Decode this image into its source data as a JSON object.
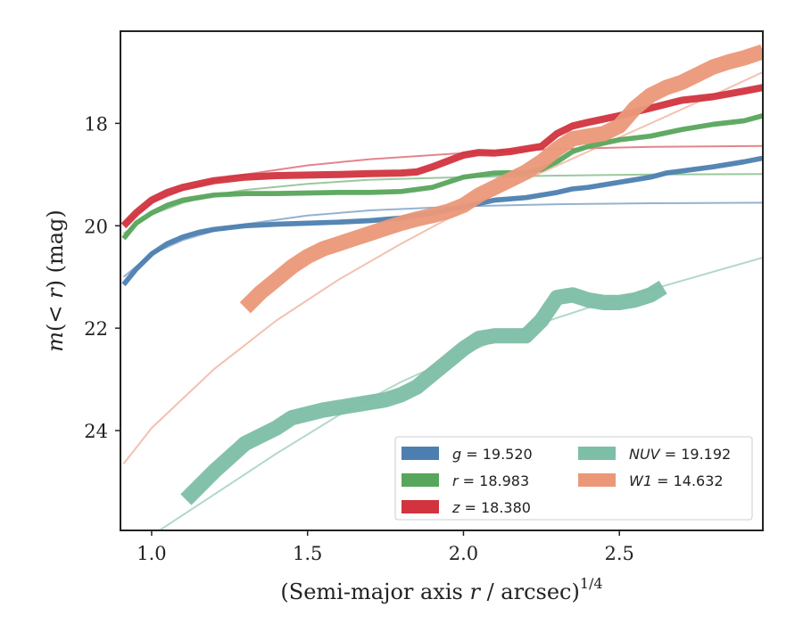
{
  "chart_data": {
    "type": "line",
    "xlabel": "(Semi-major axis r / arcsec)",
    "xlabel_parts": {
      "pre": "(Semi-major axis ",
      "var": "r",
      "post": " / arcsec)",
      "exp": "1/4"
    },
    "ylabel_parts": {
      "pre": "m",
      "mid": "(< ",
      "var": "r",
      "post": ") (mag)"
    },
    "xlim": [
      0.9,
      2.96
    ],
    "ylim": [
      25.95,
      16.2
    ],
    "y_inverted": true,
    "x_ticks": [
      "1.0",
      "1.5",
      "2.0",
      "2.5"
    ],
    "x_tick_values": [
      1.0,
      1.5,
      2.0,
      2.5
    ],
    "y_ticks": [
      "18",
      "20",
      "22",
      "24"
    ],
    "y_tick_values": [
      18,
      20,
      22,
      24
    ],
    "grid": false,
    "legend_position": "lower-right",
    "series": [
      {
        "name": "g",
        "label_value": "19.520",
        "color": "#4c7fb0",
        "band_width_mag": 0.1,
        "x": [
          0.91,
          0.95,
          1.0,
          1.05,
          1.1,
          1.15,
          1.2,
          1.3,
          1.4,
          1.5,
          1.6,
          1.7,
          1.8,
          1.9,
          2.0,
          2.1,
          2.2,
          2.3,
          2.35,
          2.4,
          2.45,
          2.5,
          2.6,
          2.65,
          2.7,
          2.8,
          2.9,
          2.96
        ],
        "y": [
          21.15,
          20.85,
          20.55,
          20.35,
          20.22,
          20.13,
          20.07,
          20.0,
          19.97,
          19.95,
          19.93,
          19.9,
          19.85,
          19.75,
          19.63,
          19.5,
          19.45,
          19.35,
          19.28,
          19.25,
          19.2,
          19.15,
          19.05,
          18.97,
          18.93,
          18.85,
          18.75,
          18.68
        ],
        "model_x": [
          0.91,
          1.0,
          1.1,
          1.2,
          1.3,
          1.5,
          1.7,
          2.0,
          2.3,
          2.6,
          2.96
        ],
        "model_y": [
          21.0,
          20.55,
          20.28,
          20.1,
          19.97,
          19.8,
          19.7,
          19.62,
          19.58,
          19.56,
          19.55
        ]
      },
      {
        "name": "r",
        "label_value": "18.983",
        "color": "#58a55c",
        "band_width_mag": 0.1,
        "x": [
          0.91,
          0.95,
          1.0,
          1.05,
          1.1,
          1.2,
          1.3,
          1.4,
          1.5,
          1.6,
          1.7,
          1.8,
          1.9,
          2.0,
          2.1,
          2.2,
          2.25,
          2.3,
          2.35,
          2.4,
          2.5,
          2.6,
          2.7,
          2.8,
          2.9,
          2.96
        ],
        "y": [
          20.25,
          19.95,
          19.75,
          19.6,
          19.5,
          19.4,
          19.37,
          19.37,
          19.36,
          19.35,
          19.35,
          19.33,
          19.25,
          19.05,
          18.97,
          18.96,
          18.9,
          18.75,
          18.55,
          18.45,
          18.32,
          18.25,
          18.12,
          18.02,
          17.95,
          17.85
        ],
        "model_x": [
          0.91,
          1.0,
          1.1,
          1.2,
          1.3,
          1.5,
          1.7,
          2.0,
          2.3,
          2.6,
          2.96
        ],
        "model_y": [
          20.15,
          19.78,
          19.55,
          19.4,
          19.3,
          19.18,
          19.1,
          19.05,
          19.02,
          19.0,
          18.99
        ]
      },
      {
        "name": "z",
        "label_value": "18.380",
        "color": "#d1343f",
        "band_width_mag": 0.14,
        "x": [
          0.91,
          0.95,
          1.0,
          1.05,
          1.1,
          1.2,
          1.3,
          1.4,
          1.5,
          1.6,
          1.7,
          1.8,
          1.85,
          1.9,
          2.0,
          2.05,
          2.1,
          2.15,
          2.2,
          2.25,
          2.3,
          2.35,
          2.4,
          2.5,
          2.6,
          2.7,
          2.8,
          2.9,
          2.96
        ],
        "y": [
          20.0,
          19.75,
          19.5,
          19.35,
          19.25,
          19.12,
          19.05,
          19.02,
          19.01,
          19.0,
          18.98,
          18.97,
          18.95,
          18.85,
          18.62,
          18.57,
          18.58,
          18.55,
          18.5,
          18.45,
          18.2,
          18.05,
          17.98,
          17.85,
          17.7,
          17.55,
          17.48,
          17.37,
          17.3
        ],
        "model_x": [
          0.91,
          1.0,
          1.1,
          1.2,
          1.3,
          1.5,
          1.7,
          2.0,
          2.3,
          2.6,
          2.96
        ],
        "model_y": [
          19.95,
          19.55,
          19.3,
          19.12,
          19.0,
          18.82,
          18.7,
          18.58,
          18.5,
          18.46,
          18.44
        ]
      },
      {
        "name": "NUV",
        "label_value": "19.192",
        "color": "#7dbea6",
        "band_width_mag": 0.3,
        "x": [
          1.11,
          1.2,
          1.3,
          1.4,
          1.45,
          1.55,
          1.65,
          1.75,
          1.8,
          1.85,
          1.9,
          1.95,
          2.0,
          2.05,
          2.1,
          2.15,
          2.2,
          2.25,
          2.3,
          2.35,
          2.4,
          2.45,
          2.5,
          2.55,
          2.6,
          2.64
        ],
        "y": [
          25.35,
          24.8,
          24.25,
          23.95,
          23.75,
          23.6,
          23.5,
          23.4,
          23.3,
          23.15,
          22.9,
          22.65,
          22.4,
          22.2,
          22.15,
          22.15,
          22.15,
          21.85,
          21.4,
          21.35,
          21.45,
          21.5,
          21.5,
          21.45,
          21.35,
          21.2
        ],
        "model_x": [
          0.91,
          1.0,
          1.2,
          1.4,
          1.6,
          1.8,
          2.0,
          2.2,
          2.4,
          2.6,
          2.8,
          2.96
        ],
        "model_y": [
          26.4,
          26.05,
          25.25,
          24.45,
          23.7,
          23.05,
          22.5,
          22.0,
          21.6,
          21.25,
          20.9,
          20.62
        ]
      },
      {
        "name": "W1",
        "label_value": "14.632",
        "color": "#eb9879",
        "band_width_mag": 0.3,
        "x": [
          1.3,
          1.35,
          1.4,
          1.45,
          1.5,
          1.55,
          1.6,
          1.65,
          1.7,
          1.75,
          1.8,
          1.85,
          1.9,
          1.95,
          2.0,
          2.05,
          2.1,
          2.15,
          2.2,
          2.25,
          2.3,
          2.35,
          2.4,
          2.45,
          2.5,
          2.55,
          2.6,
          2.65,
          2.7,
          2.75,
          2.8,
          2.85,
          2.9,
          2.96
        ],
        "y": [
          21.6,
          21.3,
          21.05,
          20.8,
          20.6,
          20.45,
          20.35,
          20.25,
          20.15,
          20.05,
          19.95,
          19.87,
          19.8,
          19.72,
          19.6,
          19.4,
          19.25,
          19.1,
          18.95,
          18.75,
          18.5,
          18.3,
          18.25,
          18.2,
          18.05,
          17.7,
          17.45,
          17.3,
          17.2,
          17.05,
          16.9,
          16.8,
          16.72,
          16.6
        ],
        "model_x": [
          0.91,
          1.0,
          1.2,
          1.4,
          1.6,
          1.8,
          2.0,
          2.2,
          2.4,
          2.6,
          2.8,
          2.96
        ],
        "model_y": [
          24.65,
          23.95,
          22.8,
          21.85,
          21.05,
          20.35,
          19.7,
          19.1,
          18.55,
          18.0,
          17.45,
          17.0
        ]
      }
    ],
    "legend_columns": [
      [
        "g",
        "r",
        "z"
      ],
      [
        "NUV",
        "W1"
      ]
    ]
  }
}
